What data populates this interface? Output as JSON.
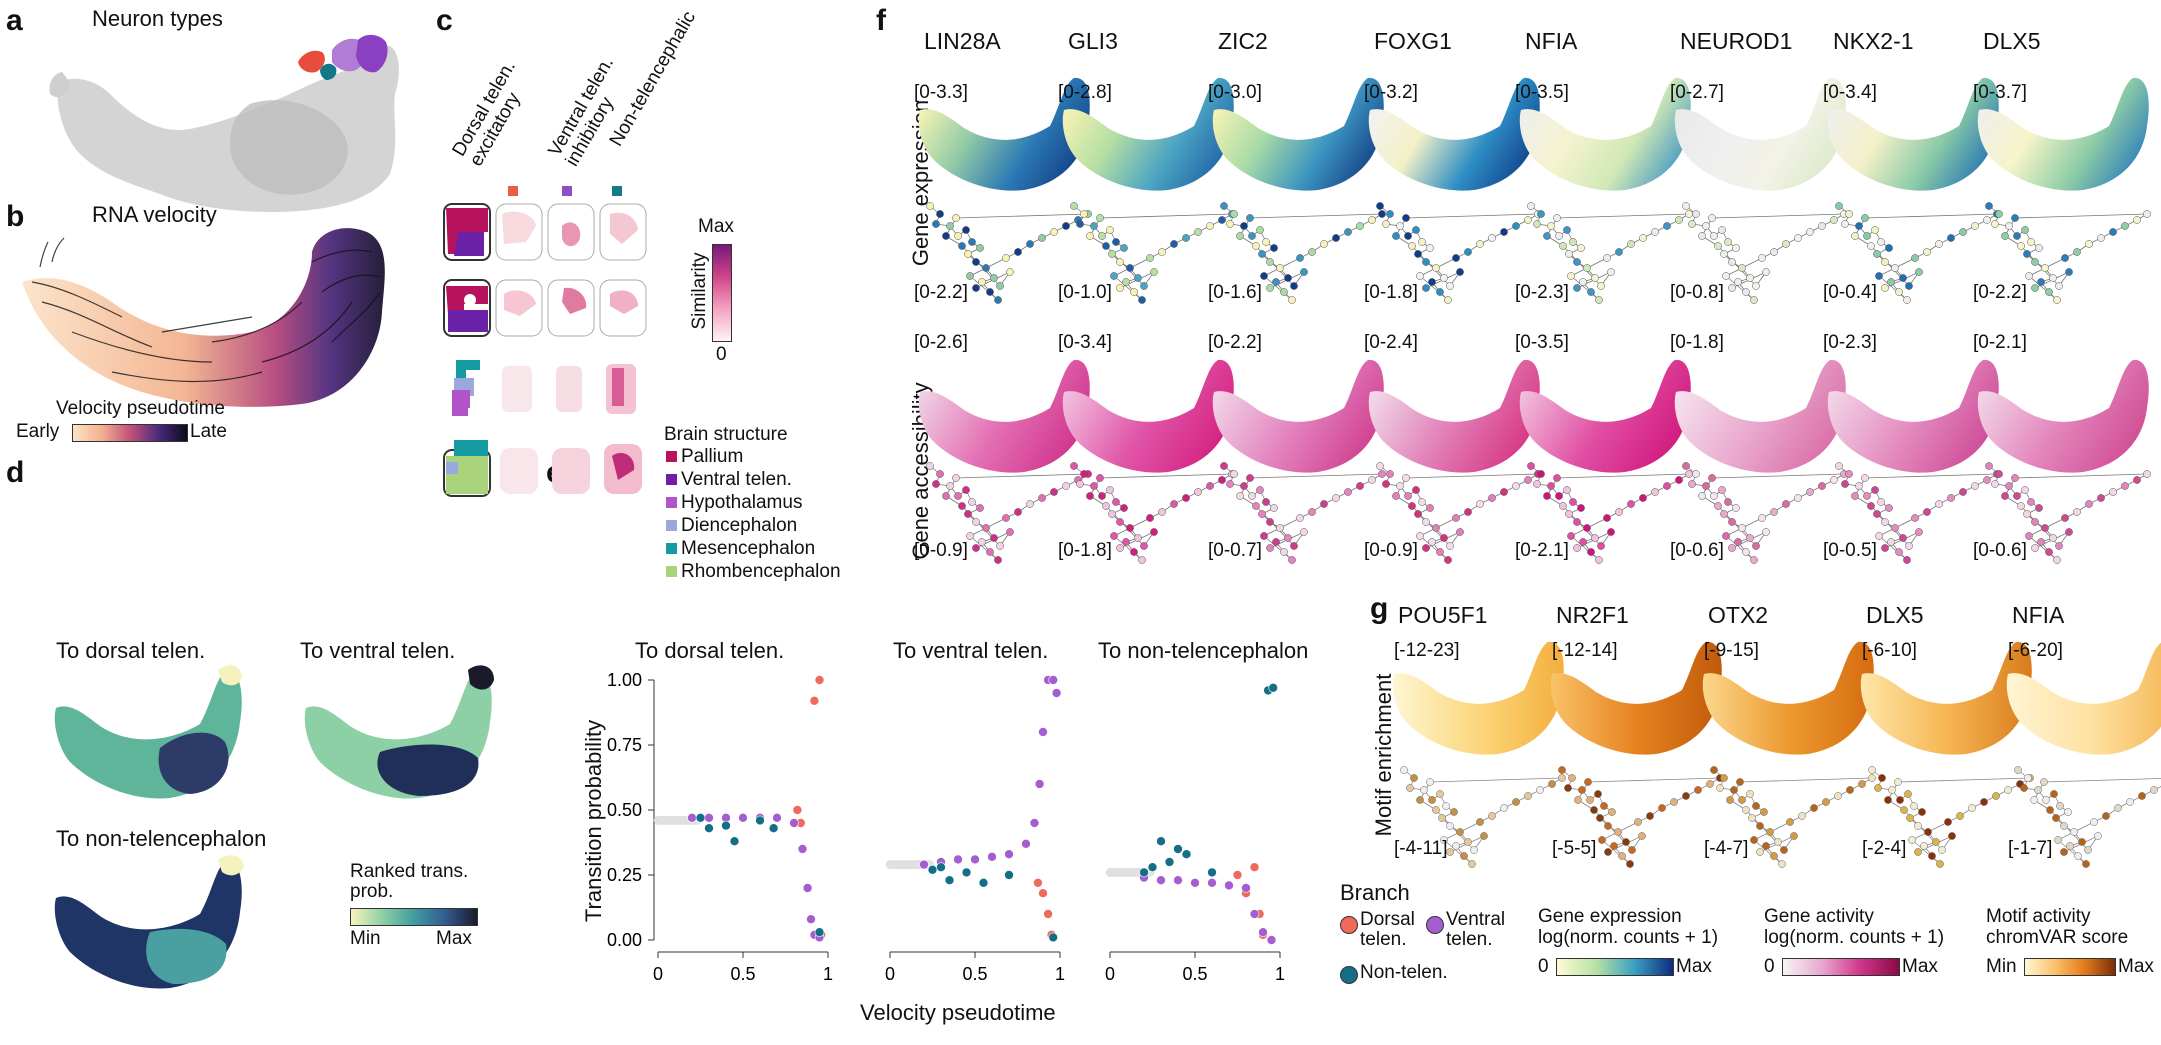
{
  "panel_letters": {
    "a": "a",
    "b": "b",
    "c": "c",
    "d": "d",
    "e": "e",
    "f": "f",
    "g": "g"
  },
  "panel_a": {
    "title": "Neuron types"
  },
  "panel_b": {
    "title": "RNA velocity",
    "legend_title": "Velocity pseudotime",
    "early": "Early",
    "late": "Late"
  },
  "panel_c": {
    "columns": [
      "Dorsal telen. excitatory",
      "Ventral telen. inhibitory",
      "Non-telencephalic"
    ],
    "column_lines": [
      [
        "Dorsal telen.",
        "excitatory"
      ],
      [
        "Ventral telen.",
        "inhibitory"
      ],
      [
        "Non-telencephalic"
      ]
    ],
    "column_colors": [
      "#e85c4a",
      "#8f4fc0",
      "#137a8a"
    ],
    "similarity": {
      "label": "Similarity",
      "max": "Max",
      "min": "0"
    },
    "brain_structure": {
      "title": "Brain structure",
      "items": [
        {
          "label": "Pallium",
          "color": "#b7125d"
        },
        {
          "label": "Ventral telen.",
          "color": "#6b22a8"
        },
        {
          "label": "Hypothalamus",
          "color": "#b254c9"
        },
        {
          "label": "Diencephalon",
          "color": "#9ba8de"
        },
        {
          "label": "Mesencephalon",
          "color": "#149aa0"
        },
        {
          "label": "Rhombencephalon",
          "color": "#a9d47c"
        }
      ]
    }
  },
  "panel_d": {
    "titles": [
      "To dorsal telen.",
      "To ventral telen.",
      "To non-telencephalon"
    ],
    "legend_title": [
      "Ranked trans.",
      "prob."
    ],
    "min": "Min",
    "max": "Max"
  },
  "panel_e": {
    "titles": [
      "To dorsal telen.",
      "To ventral telen.",
      "To non-telencephalon"
    ],
    "ylabel": "Transition probability",
    "xlabel": "Velocity pseudotime",
    "yticks": [
      "0.00",
      "0.25",
      "0.50",
      "0.75",
      "1.00"
    ],
    "xticks": [
      "0",
      "0.5",
      "1"
    ]
  },
  "panel_f": {
    "genes": [
      "LIN28A",
      "GLI3",
      "ZIC2",
      "FOXG1",
      "NFIA",
      "NEUROD1",
      "NKX2-1",
      "DLX5"
    ],
    "expr_label": "Gene expression",
    "access_label": "Gene accessibility",
    "expr_umap_ranges": [
      "[0-3.3]",
      "[0-2.8]",
      "[0-3.0]",
      "[0-3.2]",
      "[0-3.5]",
      "[0-2.7]",
      "[0-3.4]",
      "[0-3.7]"
    ],
    "expr_graph_ranges": [
      "[0-2.2]",
      "[0-1.0]",
      "[0-1.6]",
      "[0-1.8]",
      "[0-2.3]",
      "[0-0.8]",
      "[0-0.4]",
      "[0-2.2]"
    ],
    "acc_umap_ranges": [
      "[0-2.6]",
      "[0-3.4]",
      "[0-2.2]",
      "[0-2.4]",
      "[0-3.5]",
      "[0-1.8]",
      "[0-2.3]",
      "[0-2.1]"
    ],
    "acc_graph_ranges": [
      "[0-0.9]",
      "[0-1.8]",
      "[0-0.7]",
      "[0-0.9]",
      "[0-2.1]",
      "[0-0.6]",
      "[0-0.5]",
      "[0-0.6]"
    ]
  },
  "panel_g": {
    "genes": [
      "POU5F1",
      "NR2F1",
      "OTX2",
      "DLX5",
      "NFIA"
    ],
    "label": "Motif enrichment",
    "umap_ranges": [
      "[-12-23]",
      "[-12-14]",
      "[-9-15]",
      "[-6-10]",
      "[-6-20]"
    ],
    "graph_ranges": [
      "[-4-11]",
      "[-5-5]",
      "[-4-7]",
      "[-2-4]",
      "[-1-7]"
    ]
  },
  "legend_bottom": {
    "branch_title": "Branch",
    "branches": [
      {
        "label": [
          "Dorsal",
          "telen."
        ],
        "color": "#ee6a5a"
      },
      {
        "label": [
          "Ventral",
          "telen."
        ],
        "color": "#a45ed0"
      },
      {
        "label": [
          "Non-telen."
        ],
        "color": "#146f86"
      }
    ],
    "expr": {
      "title": [
        "Gene expression",
        "log(norm. counts + 1)"
      ],
      "min": "0",
      "max": "Max"
    },
    "activity": {
      "title": [
        "Gene activity",
        "log(norm. counts + 1)"
      ],
      "min": "0",
      "max": "Max"
    },
    "motif": {
      "title": [
        "Motif activity",
        "chromVAR score"
      ],
      "min": "Min",
      "max": "Max"
    }
  },
  "chart_data": [
    {
      "type": "scatter",
      "title": "To dorsal telen.",
      "xlabel": "Velocity pseudotime",
      "ylabel": "Transition probability",
      "xlim": [
        0,
        1
      ],
      "ylim": [
        0,
        1
      ],
      "series": [
        {
          "name": "Dorsal telen.",
          "x": [
            0.82,
            0.84,
            0.92,
            0.95,
            0.96
          ],
          "y": [
            0.5,
            0.45,
            0.92,
            1.0,
            0.02
          ]
        },
        {
          "name": "Ventral telen.",
          "x": [
            0.2,
            0.3,
            0.4,
            0.5,
            0.6,
            0.7,
            0.8,
            0.85,
            0.88,
            0.9,
            0.92,
            0.95
          ],
          "y": [
            0.47,
            0.47,
            0.47,
            0.47,
            0.47,
            0.47,
            0.45,
            0.35,
            0.2,
            0.08,
            0.02,
            0.01
          ]
        },
        {
          "name": "Non-telen.",
          "x": [
            0.25,
            0.3,
            0.4,
            0.45,
            0.6,
            0.68,
            0.95
          ],
          "y": [
            0.47,
            0.43,
            0.44,
            0.38,
            0.46,
            0.43,
            0.03
          ]
        }
      ]
    },
    {
      "type": "scatter",
      "title": "To ventral telen.",
      "xlabel": "Velocity pseudotime",
      "ylabel": "Transition probability",
      "xlim": [
        0,
        1
      ],
      "ylim": [
        0,
        1
      ],
      "series": [
        {
          "name": "Dorsal telen.",
          "x": [
            0.87,
            0.9,
            0.93,
            0.95
          ],
          "y": [
            0.22,
            0.18,
            0.1,
            0.02
          ]
        },
        {
          "name": "Ventral telen.",
          "x": [
            0.2,
            0.3,
            0.4,
            0.5,
            0.6,
            0.7,
            0.8,
            0.85,
            0.88,
            0.9,
            0.93,
            0.96,
            0.98
          ],
          "y": [
            0.29,
            0.3,
            0.31,
            0.31,
            0.32,
            0.33,
            0.37,
            0.45,
            0.6,
            0.8,
            1.0,
            1.0,
            0.95
          ]
        },
        {
          "name": "Non-telen.",
          "x": [
            0.25,
            0.3,
            0.35,
            0.45,
            0.55,
            0.7,
            0.96
          ],
          "y": [
            0.27,
            0.28,
            0.23,
            0.26,
            0.22,
            0.25,
            0.01
          ]
        }
      ]
    },
    {
      "type": "scatter",
      "title": "To non-telencephalon",
      "xlabel": "Velocity pseudotime",
      "ylabel": "Transition probability",
      "xlim": [
        0,
        1
      ],
      "ylim": [
        0,
        1
      ],
      "series": [
        {
          "name": "Dorsal telen.",
          "x": [
            0.75,
            0.8,
            0.85,
            0.88,
            0.9
          ],
          "y": [
            0.25,
            0.18,
            0.28,
            0.1,
            0.02
          ]
        },
        {
          "name": "Ventral telen.",
          "x": [
            0.2,
            0.3,
            0.4,
            0.5,
            0.6,
            0.7,
            0.8,
            0.85,
            0.9,
            0.95
          ],
          "y": [
            0.24,
            0.23,
            0.23,
            0.22,
            0.22,
            0.21,
            0.2,
            0.1,
            0.03,
            0.0
          ]
        },
        {
          "name": "Non-telen.",
          "x": [
            0.2,
            0.25,
            0.3,
            0.35,
            0.4,
            0.45,
            0.6,
            0.93,
            0.96
          ],
          "y": [
            0.26,
            0.28,
            0.38,
            0.3,
            0.35,
            0.33,
            0.26,
            0.96,
            0.97
          ]
        }
      ]
    }
  ]
}
